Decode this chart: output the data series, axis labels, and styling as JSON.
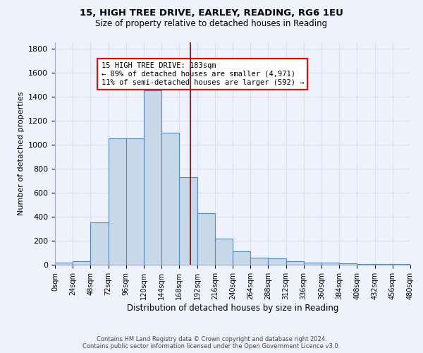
{
  "title": "15, HIGH TREE DRIVE, EARLEY, READING, RG6 1EU",
  "subtitle": "Size of property relative to detached houses in Reading",
  "xlabel": "Distribution of detached houses by size in Reading",
  "ylabel": "Number of detached properties",
  "bin_edges": [
    0,
    24,
    48,
    72,
    96,
    120,
    144,
    168,
    192,
    216,
    240,
    264,
    288,
    312,
    336,
    360,
    384,
    408,
    432,
    456,
    480
  ],
  "bar_heights": [
    15,
    30,
    350,
    1050,
    1050,
    1450,
    1100,
    730,
    430,
    220,
    110,
    60,
    50,
    30,
    20,
    15,
    10,
    8,
    5,
    5
  ],
  "bar_color": "#c8d8e8",
  "bar_edge_color": "#5588bb",
  "grid_color": "#d8e0f0",
  "background_color": "#eef2fc",
  "red_line_x": 183,
  "annotation_text": "15 HIGH TREE DRIVE: 183sqm\n← 89% of detached houses are smaller (4,971)\n11% of semi-detached houses are larger (592) →",
  "footer_line1": "Contains HM Land Registry data © Crown copyright and database right 2024.",
  "footer_line2": "Contains public sector information licensed under the Open Government Licence v3.0.",
  "ylim": [
    0,
    1850
  ],
  "xlim": [
    0,
    480
  ],
  "yticks": [
    0,
    200,
    400,
    600,
    800,
    1000,
    1200,
    1400,
    1600,
    1800
  ],
  "xtick_labels": [
    "0sqm",
    "24sqm",
    "48sqm",
    "72sqm",
    "96sqm",
    "120sqm",
    "144sqm",
    "168sqm",
    "192sqm",
    "216sqm",
    "240sqm",
    "264sqm",
    "288sqm",
    "312sqm",
    "336sqm",
    "360sqm",
    "384sqm",
    "408sqm",
    "432sqm",
    "456sqm",
    "480sqm"
  ]
}
